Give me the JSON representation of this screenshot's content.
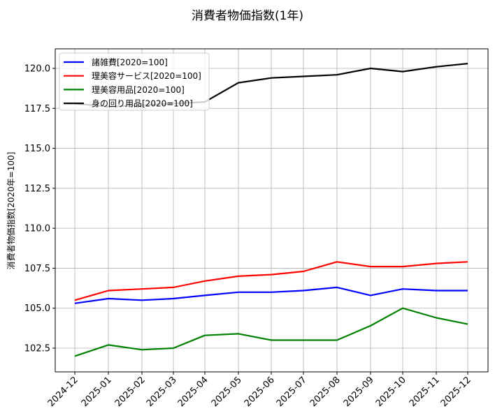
{
  "chart_data": {
    "type": "line",
    "title": "消費者物価指数(1年)",
    "xlabel": "",
    "ylabel": "消費者物価指数[2020年=100]",
    "ylim": [
      101.1,
      121.2
    ],
    "yticks": [
      "102.5",
      "105.0",
      "107.5",
      "110.0",
      "112.5",
      "115.0",
      "117.5",
      "120.0"
    ],
    "grid": true,
    "legend_position": "upper left",
    "categories": [
      "2024-12",
      "2025-01",
      "2025-02",
      "2025-03",
      "2025-04",
      "2025-05",
      "2025-06",
      "2025-07",
      "2025-08",
      "2025-09",
      "2025-10",
      "2025-11",
      "2025-12"
    ],
    "series": [
      {
        "name": "諸雑費[2020=100]",
        "color": "#0000ff",
        "values": [
          105.3,
          105.6,
          105.5,
          105.6,
          105.8,
          106.0,
          106.0,
          106.1,
          106.3,
          105.8,
          106.2,
          106.1,
          106.1
        ]
      },
      {
        "name": "理美容サービス[2020=100]",
        "color": "#ff0000",
        "values": [
          105.5,
          106.1,
          106.2,
          106.3,
          106.7,
          107.0,
          107.1,
          107.3,
          107.9,
          107.6,
          107.6,
          107.8,
          107.9
        ]
      },
      {
        "name": "理美容用品[2020=100]",
        "color": "#008000",
        "values": [
          102.0,
          102.7,
          102.4,
          102.5,
          103.3,
          103.4,
          103.0,
          103.0,
          103.0,
          103.9,
          105.0,
          104.4,
          104.0
        ]
      },
      {
        "name": "身の回り用品[2020=100]",
        "color": "#000000",
        "values": [
          117.8,
          117.6,
          117.7,
          117.8,
          117.9,
          119.1,
          119.4,
          119.5,
          119.6,
          120.0,
          119.8,
          120.1,
          120.3
        ]
      }
    ]
  }
}
